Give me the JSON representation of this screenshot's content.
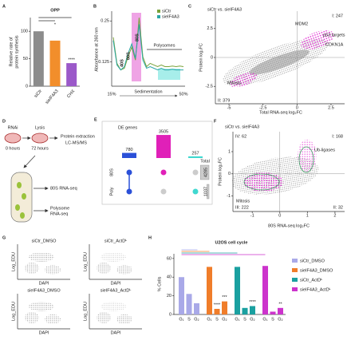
{
  "chart_data": [
    {
      "panel": "A",
      "type": "bar",
      "title": "OPP",
      "y_label": [
        "Relative rate of",
        "protein synthesis"
      ],
      "categories": [
        "siCtr",
        "sieIF4A3",
        "CHX"
      ],
      "values": [
        100,
        83,
        42
      ],
      "colors": [
        "#8c8c8c",
        "#f28e2b",
        "#9b59c9"
      ],
      "ylim": [
        0,
        125
      ],
      "yticks": [
        0,
        50,
        100
      ],
      "annotations": [
        "*",
        "****"
      ]
    },
    {
      "panel": "B",
      "type": "line",
      "y_label": "Absorbance at 260 nm",
      "series": [
        {
          "name": "siCtr",
          "color": "#7aa23a",
          "values": [
            0.2,
            0.12,
            0.1,
            0.105,
            0.14,
            0.17,
            0.13,
            0.26,
            0.14,
            0.11,
            0.12,
            0.115,
            0.11,
            0.115,
            0.11,
            0.11,
            0.112,
            0.11,
            0.112,
            0.11
          ]
        },
        {
          "name": "sieIF4A3",
          "color": "#2aa6a6",
          "values": [
            0.19,
            0.115,
            0.1,
            0.11,
            0.15,
            0.18,
            0.135,
            0.24,
            0.13,
            0.105,
            0.11,
            0.105,
            0.1,
            0.105,
            0.1,
            0.1,
            0.102,
            0.1,
            0.1,
            0.1
          ]
        }
      ],
      "ylim": [
        0.05,
        0.28
      ],
      "yticks": [
        0.125,
        0.25
      ],
      "annotations": [
        "40S",
        "60S",
        "80S",
        "Polysomes"
      ],
      "x_labels": [
        "15%",
        "Sedimentation",
        "50%"
      ]
    },
    {
      "panel": "C",
      "type": "scatter",
      "title": "siCtr vs. sieIF4A3",
      "x_label": "Total RNA-seq log₂FC",
      "y_label": "Protein log₂FC",
      "xlim": [
        -6,
        3.5
      ],
      "xticks": [
        -5,
        -2.5,
        0,
        2.5
      ],
      "ylim": [
        -4,
        4
      ],
      "yticks": [
        -2.5,
        0,
        2.5
      ],
      "quadrant_labels": [
        "I: 247",
        "II: 379"
      ],
      "annotations": [
        "MDM2",
        "p53 targets",
        "CDKN1A",
        "Mitosis"
      ]
    },
    {
      "panel": "E",
      "type": "upset",
      "title": "DE genes",
      "values": [
        780,
        3505,
        257
      ],
      "colors": [
        "#2b50d8",
        "#e020b8",
        "#40d8d0"
      ],
      "ylim": [
        0,
        4000
      ],
      "sets": [
        "80S",
        "Poly"
      ],
      "membership": [
        [
          true,
          true
        ],
        [
          true,
          false
        ],
        [
          false,
          true
        ]
      ],
      "total_label": "Total",
      "totals": [
        4285,
        1037
      ]
    },
    {
      "panel": "F",
      "type": "scatter",
      "title": "siCtr vs. sieIF4A3",
      "x_label": "80S RNA-seq log₂FC",
      "y_label": "Protein log₂FC",
      "xlim": [
        -1.7,
        2.35
      ],
      "xticks": [
        -1,
        0,
        1,
        2
      ],
      "ylim": [
        -1.7,
        1.9
      ],
      "yticks": [
        -1,
        0,
        1
      ],
      "quadrant_labels": [
        "IV: 62",
        "I: 168",
        "III: 222",
        "II: 32"
      ],
      "annotations": [
        "Ub-ligases",
        "Mitosis"
      ]
    },
    {
      "panel": "H",
      "type": "grouped_bar",
      "title": "U2OS cell cycle",
      "y_label": "% Cells",
      "categories": [
        "G₁",
        "S",
        "G₂"
      ],
      "series": [
        {
          "name": "siCtr_DMSO",
          "color": "#a9a9e8",
          "values": [
            40,
            22,
            12
          ]
        },
        {
          "name": "sieIF4A3_DMSO",
          "color": "#f07d2a",
          "values": [
            51,
            6,
            14
          ]
        },
        {
          "name": "siCtr_ActDᴸ",
          "color": "#1aa0a0",
          "values": [
            51,
            7,
            9
          ]
        },
        {
          "name": "sieIF4A3_ActDᴸ",
          "color": "#cc33cc",
          "values": [
            52,
            3,
            7
          ]
        }
      ],
      "ylim": [
        0,
        65
      ],
      "yticks": [
        0,
        20,
        40,
        60
      ],
      "annotations": [
        "****",
        "***",
        "****",
        "**"
      ]
    }
  ],
  "panel_d": {
    "panel": "D",
    "rnai": "RNAi",
    "lysis": "Lysis",
    "t0": "0 hours",
    "t72": "72 hours",
    "protein": [
      "Protein extraction",
      "LC-MS/MS"
    ],
    "ribo": "80S RNA-seq",
    "poly": [
      "Polysome",
      "RNA-seq"
    ]
  },
  "panel_g": {
    "panel": "G",
    "plots": [
      "siCtr_DMSO",
      "siCtr_ActDᴸ",
      "sieIF4A3_DMSO",
      "sieIF4A3_ActDᴸ"
    ],
    "x_label": "DAPI",
    "y_label": "Log_EDU"
  }
}
